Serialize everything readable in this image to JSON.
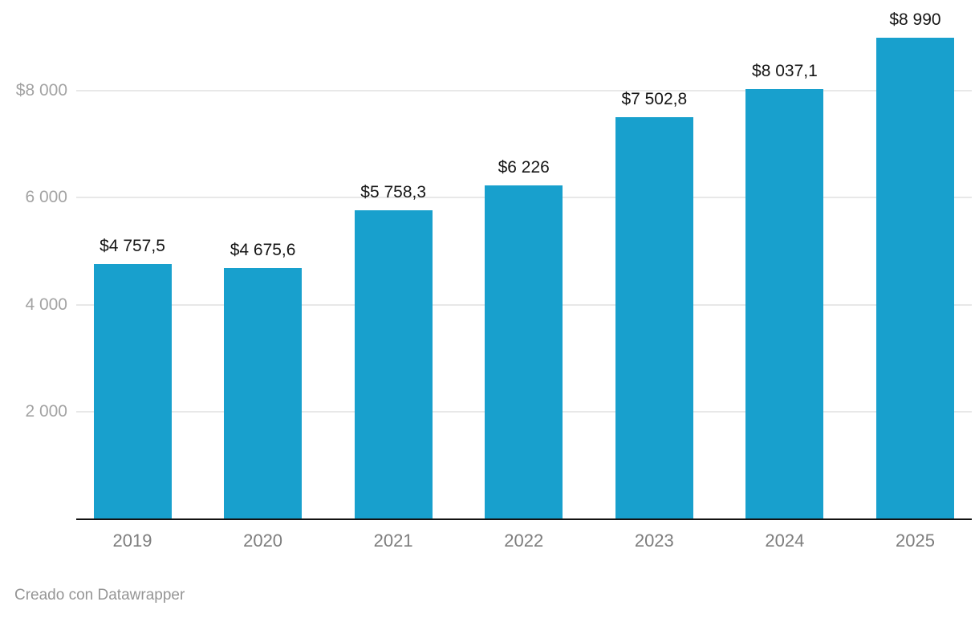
{
  "chart_data": {
    "type": "bar",
    "categories": [
      "2019",
      "2020",
      "2021",
      "2022",
      "2023",
      "2024",
      "2025"
    ],
    "values": [
      4757.5,
      4675.6,
      5758.3,
      6226,
      7502.8,
      8037.1,
      8990
    ],
    "value_labels": [
      "$4 757,5",
      "$4 675,6",
      "$5 758,3",
      "$6 226",
      "$7 502,8",
      "$8 037,1",
      "$8 990"
    ],
    "y_ticks": [
      {
        "value": 2000,
        "label": "2 000"
      },
      {
        "value": 4000,
        "label": "4 000"
      },
      {
        "value": 6000,
        "label": "6 000"
      },
      {
        "value": 8000,
        "label": "$8 000"
      }
    ],
    "ylim": [
      0,
      9000
    ],
    "grid": true,
    "legend": false,
    "bar_color": "#18a0cd",
    "grid_color": "#e8e8e8",
    "axis_color": "#121212",
    "value_label_color": "#161616",
    "x_label_color": "#7d7d7d",
    "y_label_color": "#a3a3a3"
  },
  "footer": {
    "credit": "Creado con Datawrapper"
  }
}
